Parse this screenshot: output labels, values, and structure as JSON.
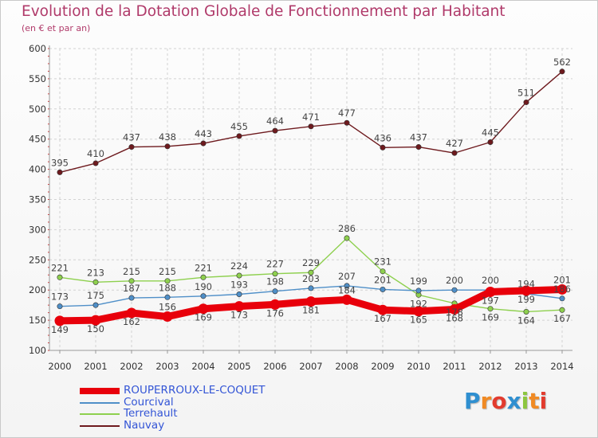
{
  "header": {
    "title": "Evolution de la Dotation Globale de Fonctionnement par Habitant",
    "subtitle": "(en € et par an)"
  },
  "logo": {
    "letters": [
      "P",
      "r",
      "o",
      "x",
      "i",
      "t",
      "i"
    ],
    "colors": [
      "#2f8fd0",
      "#f08a24",
      "#e23b2e",
      "#2f8fd0",
      "#8cc63f",
      "#f08a24",
      "#e23b2e"
    ]
  },
  "chart_data": {
    "type": "line",
    "title": "Evolution de la Dotation Globale de Fonctionnement par Habitant",
    "subtitle": "(en € et par an)",
    "xlabel": "",
    "ylabel": "",
    "ylim": [
      100,
      600
    ],
    "yticks": [
      100,
      150,
      200,
      250,
      300,
      350,
      400,
      450,
      500,
      550,
      600
    ],
    "grid": true,
    "legend_position": "bottom-left",
    "categories": [
      "2000",
      "2001",
      "2002",
      "2003",
      "2004",
      "2005",
      "2006",
      "2007",
      "2008",
      "2009",
      "2010",
      "2011",
      "2012",
      "2013",
      "2014"
    ],
    "series": [
      {
        "name": "ROUPERROUX-LE-COQUET",
        "color": "#e8000b",
        "values": [
          149,
          150,
          162,
          156,
          169,
          173,
          176,
          181,
          184,
          167,
          165,
          168,
          197,
          199,
          201
        ],
        "label_pos": [
          "b",
          "b",
          "b",
          "a",
          "b",
          "b",
          "b",
          "b",
          "a",
          "b",
          "b",
          "b",
          "b",
          "b",
          "a"
        ]
      },
      {
        "name": "Courcival",
        "color": "#4f8fc8",
        "values": [
          173,
          175,
          187,
          188,
          190,
          193,
          198,
          203,
          207,
          201,
          199,
          200,
          200,
          194,
          186
        ],
        "label_pos": [
          "a",
          "a",
          "a",
          "a",
          "a",
          "a",
          "a",
          "a",
          "a",
          "a",
          "a",
          "a",
          "a",
          "a",
          "a"
        ]
      },
      {
        "name": "Terrehault",
        "color": "#8ed04e",
        "values": [
          221,
          213,
          215,
          215,
          221,
          224,
          227,
          229,
          286,
          231,
          192,
          178,
          169,
          164,
          167
        ],
        "label_pos": [
          "a",
          "a",
          "a",
          "a",
          "a",
          "a",
          "a",
          "a",
          "a",
          "a",
          "b",
          "b",
          "b",
          "b",
          "b"
        ]
      },
      {
        "name": "Nauvay",
        "color": "#6e1a1e",
        "values": [
          395,
          410,
          437,
          438,
          443,
          455,
          464,
          471,
          477,
          436,
          437,
          427,
          445,
          511,
          562
        ],
        "label_pos": [
          "a",
          "a",
          "a",
          "a",
          "a",
          "a",
          "a",
          "a",
          "a",
          "a",
          "a",
          "a",
          "a",
          "a",
          "a"
        ]
      }
    ]
  }
}
